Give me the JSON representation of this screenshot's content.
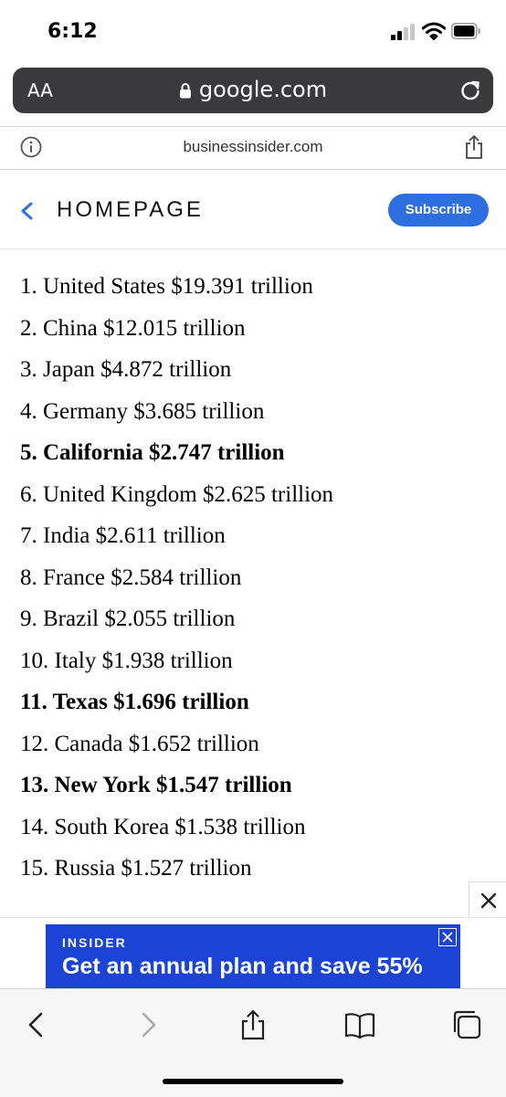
{
  "status": {
    "time": "6:12"
  },
  "browser": {
    "text_size_label": "AA",
    "domain": "google.com"
  },
  "site_bar": {
    "site": "businessinsider.com"
  },
  "header": {
    "title": "HOMEPAGE",
    "subscribe_label": "Subscribe",
    "accent": "#2d6fe0"
  },
  "list": {
    "items": [
      {
        "text": "1. United States $19.391 trillion",
        "bold": false
      },
      {
        "text": "2. China $12.015 trillion",
        "bold": false
      },
      {
        "text": "3. Japan $4.872 trillion",
        "bold": false
      },
      {
        "text": "4. Germany $3.685 trillion",
        "bold": false
      },
      {
        "text": "5. California $2.747 trillion",
        "bold": true
      },
      {
        "text": "6. United Kingdom $2.625 trillion",
        "bold": false
      },
      {
        "text": "7. India $2.611 trillion",
        "bold": false
      },
      {
        "text": "8. France $2.584 trillion",
        "bold": false
      },
      {
        "text": "9. Brazil $2.055 trillion",
        "bold": false
      },
      {
        "text": "10. Italy $1.938 trillion",
        "bold": false
      },
      {
        "text": "11. Texas $1.696 trillion",
        "bold": true
      },
      {
        "text": "12. Canada $1.652 trillion",
        "bold": false
      },
      {
        "text": "13. New York $1.547 trillion",
        "bold": true
      },
      {
        "text": "14. South Korea $1.538 trillion",
        "bold": false
      },
      {
        "text": "15. Russia $1.527 trillion",
        "bold": false
      }
    ]
  },
  "ad": {
    "brand": "INSIDER",
    "text": "Get an annual plan and save 55%",
    "color": "#1b43d4"
  },
  "toolbar": {
    "icons": [
      "back-icon",
      "forward-icon",
      "share-icon",
      "bookmarks-icon",
      "tabs-icon"
    ]
  }
}
